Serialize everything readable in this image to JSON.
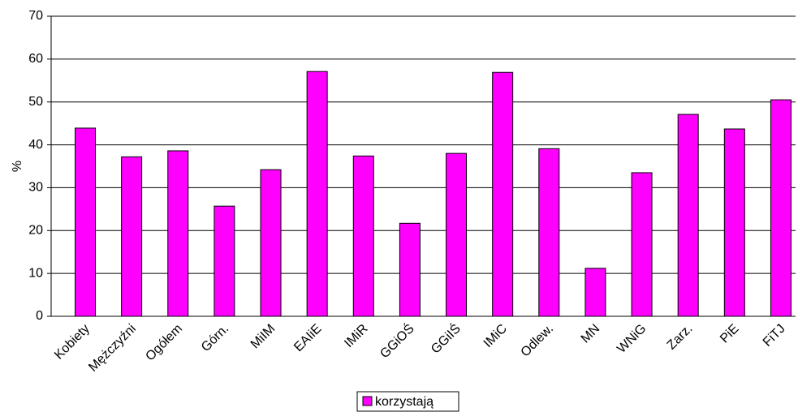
{
  "chart_data": {
    "type": "bar",
    "y_label": "%",
    "categories": [
      "Kobiety",
      "Mężczyźni",
      "Ogółem",
      "Górn.",
      "MiIM",
      "EAIiE",
      "IMiR",
      "GGiOŚ",
      "GGiIŚ",
      "IMiC",
      "Odlew.",
      "MN",
      "WNiG",
      "Zarz.",
      "PiE",
      "FiTJ"
    ],
    "series": [
      {
        "name": "korzystają",
        "color": "#ff00ff",
        "values": [
          43.9,
          37.2,
          38.6,
          25.7,
          34.2,
          57.1,
          37.4,
          21.7,
          38,
          56.9,
          39.1,
          11.2,
          33.5,
          47.1,
          43.7,
          50.5
        ]
      }
    ],
    "ylim": [
      0,
      70
    ],
    "yticks": [
      0,
      10,
      20,
      30,
      40,
      50,
      60,
      70
    ],
    "grid": true,
    "legend": "bottom"
  }
}
